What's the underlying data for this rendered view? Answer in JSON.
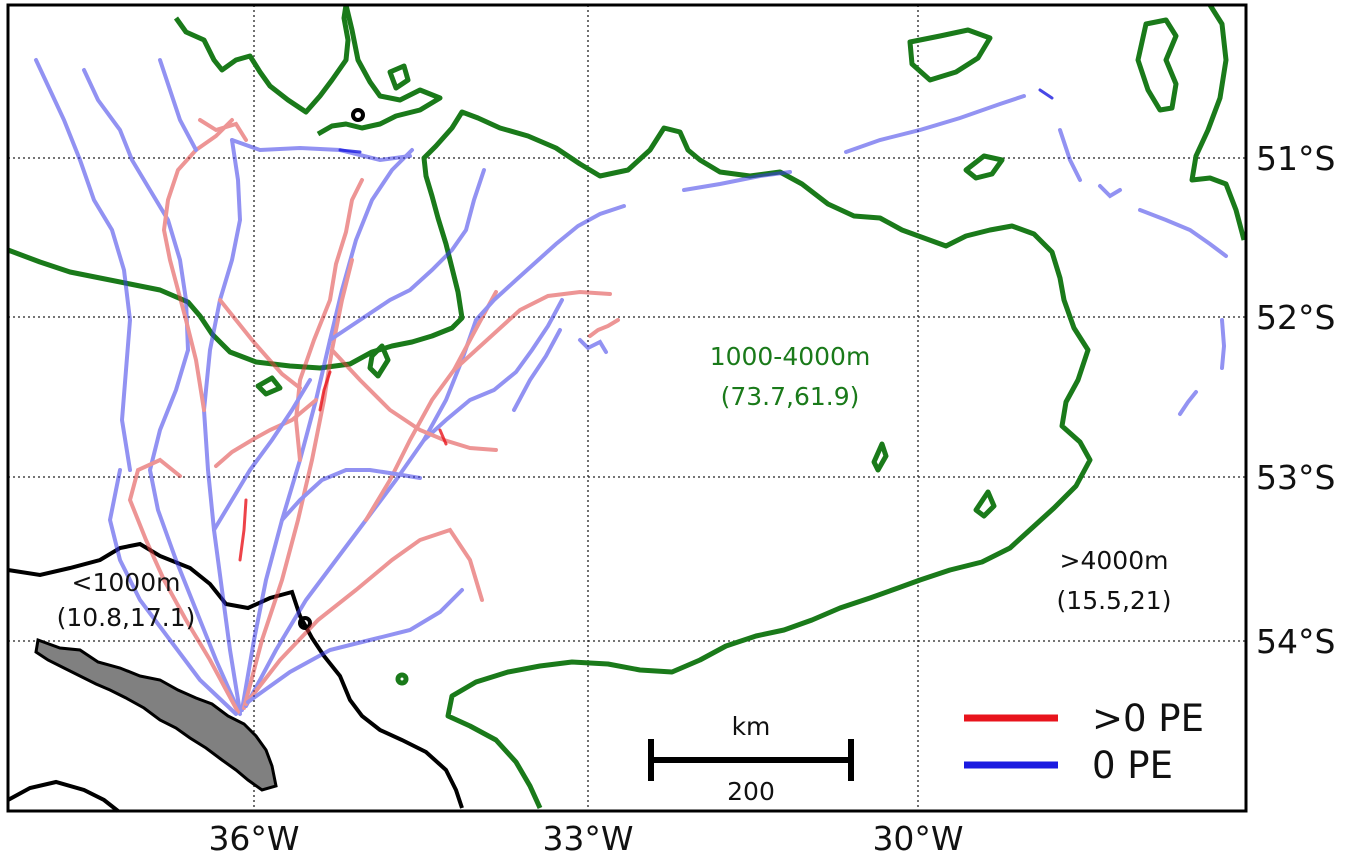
{
  "map": {
    "lon_ticks": [
      "36°W",
      "33°W",
      "30°W"
    ],
    "lat_ticks": [
      "51°S",
      "52°S",
      "53°S",
      "54°S"
    ],
    "regions": [
      {
        "name": "1000-4000m",
        "value": "(73.7,61.9)",
        "color": "#1f7a1f"
      },
      {
        "name": "<1000m",
        "value": "(10.8,17.1)",
        "color": "#111111"
      },
      {
        "name": ">4000m",
        "value": "(15.5,21)",
        "color": "#111111"
      }
    ],
    "scale_bar": {
      "unit": "km",
      "value": "200"
    },
    "legend": [
      {
        "label": ">0 PE",
        "color": "#e8141c"
      },
      {
        "label": "0 PE",
        "color": "#1a1ae0"
      }
    ],
    "contour_colors": {
      "mid_depth": "#1a7a1a",
      "shallow": "#000000",
      "land": "#7f7f7f"
    }
  }
}
